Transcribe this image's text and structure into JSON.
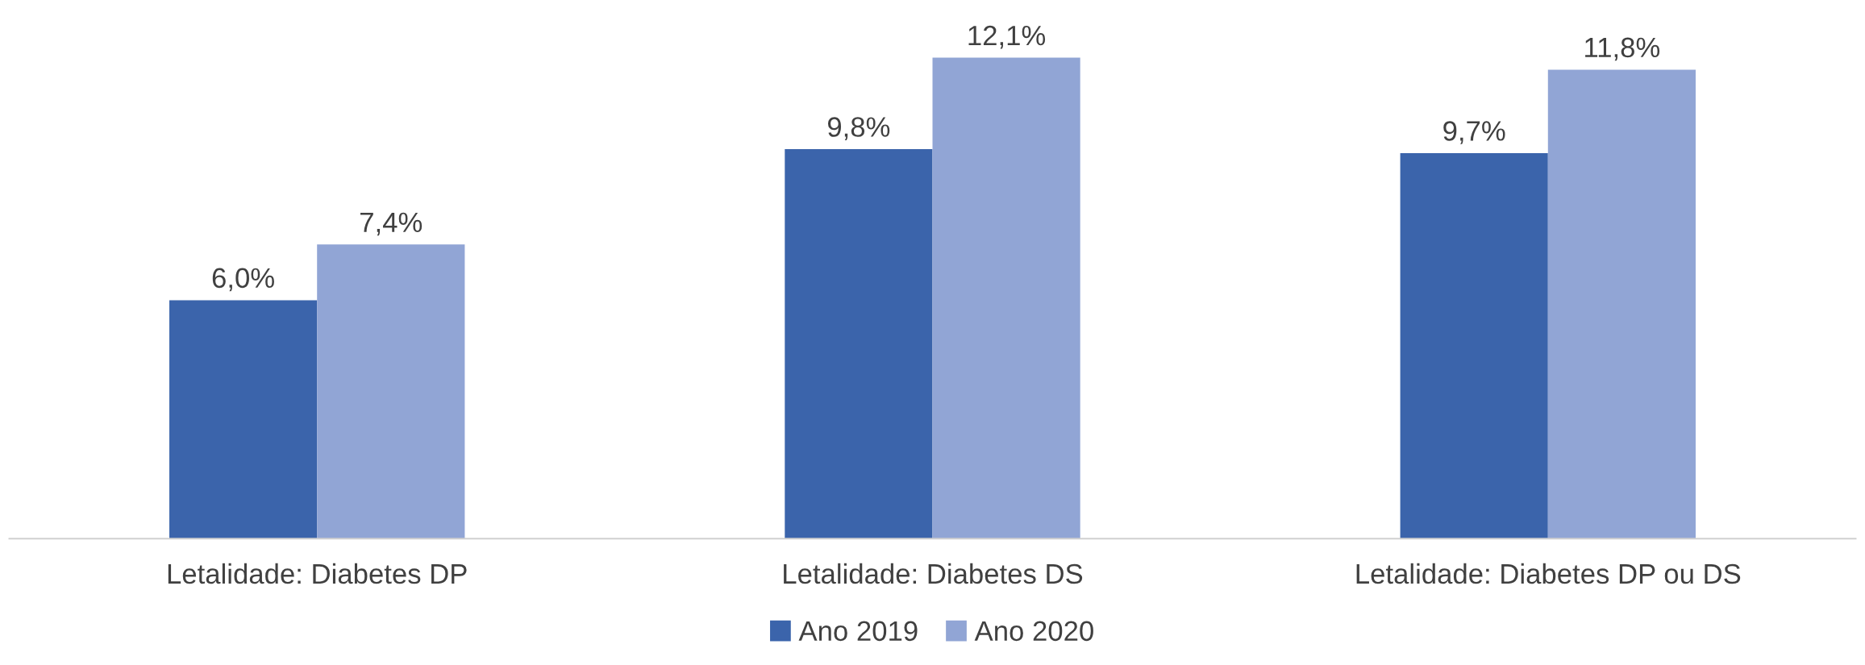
{
  "chart_data": {
    "type": "bar",
    "categories": [
      "Letalidade: Diabetes DP",
      "Letalidade: Diabetes DS",
      "Letalidade: Diabetes DP ou DS"
    ],
    "series": [
      {
        "name": "Ano 2019",
        "color": "#3b64ab",
        "values": [
          6.0,
          9.8,
          9.7
        ],
        "value_labels": [
          "6,0%",
          "9,8%",
          "9,7%"
        ]
      },
      {
        "name": "Ano 2020",
        "color": "#91a5d5",
        "values": [
          7.4,
          12.1,
          11.8
        ],
        "value_labels": [
          "7,4%",
          "12,1%",
          "11,8%"
        ]
      }
    ],
    "legend": "bottom",
    "grid": false
  }
}
